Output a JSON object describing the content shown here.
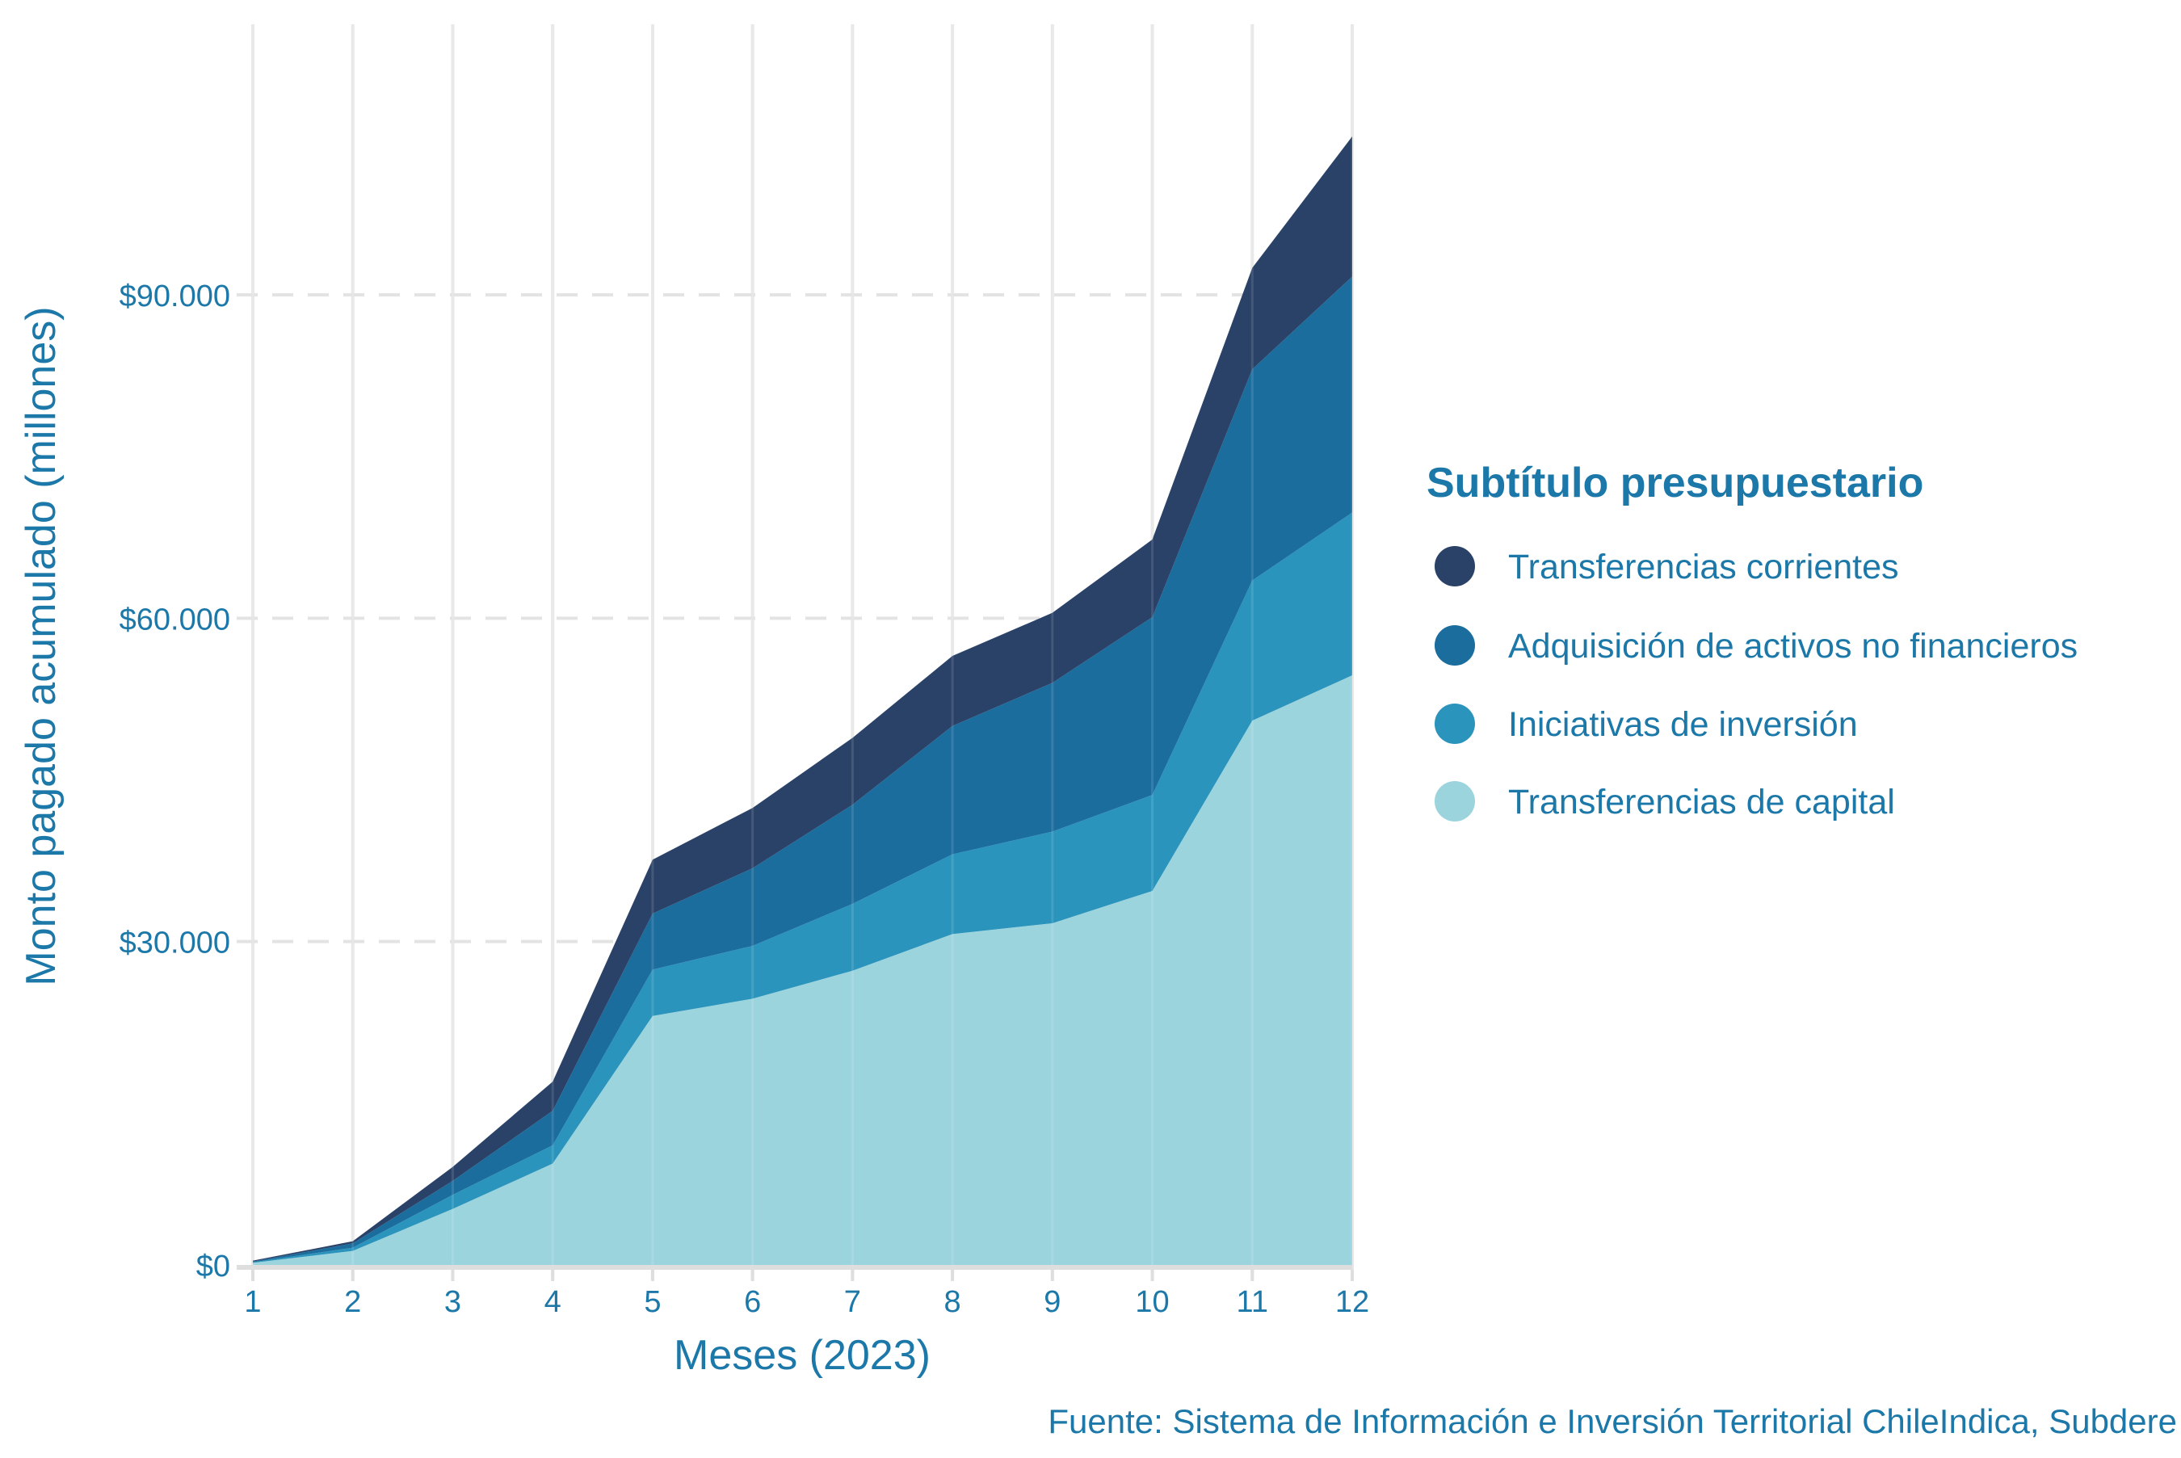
{
  "chart_data": {
    "type": "area",
    "stacked": true,
    "xlabel": "Meses (2023)",
    "ylabel": "Monto pagado acumulado (millones)",
    "x": [
      1,
      2,
      3,
      4,
      5,
      6,
      7,
      8,
      9,
      10,
      11,
      12
    ],
    "x_tick_labels": [
      "1",
      "2",
      "3",
      "4",
      "5",
      "6",
      "7",
      "8",
      "9",
      "10",
      "11",
      "12"
    ],
    "y_ticks": [
      0,
      30000,
      60000,
      90000
    ],
    "y_tick_labels": [
      "$0",
      "$30.000",
      "$60.000",
      "$90.000"
    ],
    "ylim": [
      0,
      112000
    ],
    "grid": true,
    "legend_title": "Subtítulo presupuestario",
    "legend_position": "right",
    "series": [
      {
        "name": "Transferencias corrientes",
        "color": "#2b4268",
        "values": [
          80,
          200,
          1300,
          2700,
          5000,
          5600,
          6200,
          6500,
          6500,
          7200,
          9400,
          13000
        ]
      },
      {
        "name": "Adquisición de activos no financieros",
        "color": "#1b6d9e",
        "values": [
          70,
          400,
          1300,
          3200,
          5200,
          7200,
          9200,
          11900,
          13800,
          16500,
          19600,
          21900
        ]
      },
      {
        "name": "Iniciativas de inversión",
        "color": "#2a94bc",
        "values": [
          50,
          300,
          1300,
          1700,
          4300,
          4900,
          6200,
          7400,
          8500,
          8900,
          13000,
          15100
        ]
      },
      {
        "name": "Transferencias de capital",
        "color": "#9cd4de",
        "values": [
          200,
          1300,
          5200,
          9400,
          23100,
          24700,
          27300,
          30700,
          31700,
          34700,
          50500,
          54700
        ]
      }
    ],
    "caption": "Fuente: Sistema de Información e Inversión Territorial ChileIndica, Subdere"
  }
}
